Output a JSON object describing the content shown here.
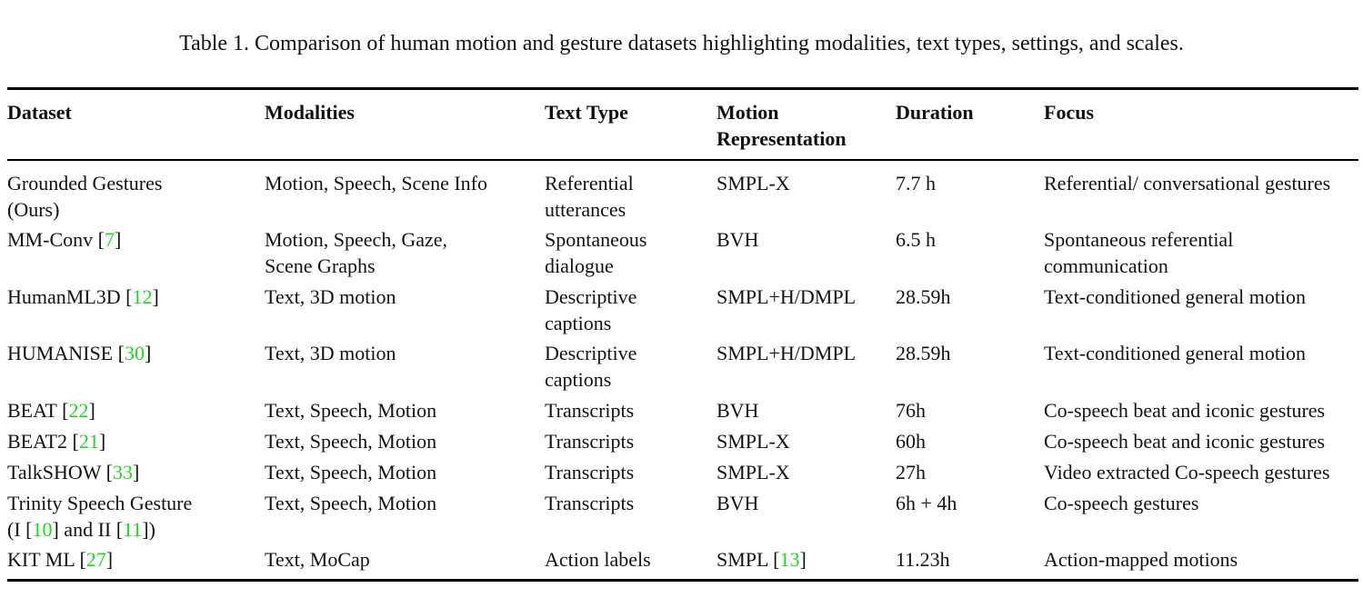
{
  "caption": "Table 1. Comparison of human motion and gesture datasets highlighting modalities, text types, settings, and scales.",
  "headers": {
    "dataset": "Dataset",
    "modalities": "Modalities",
    "text_type": "Text Type",
    "motion_rep_1": "Motion",
    "motion_rep_2": "Representation",
    "duration": "Duration",
    "focus": "Focus"
  },
  "rows": [
    {
      "dataset": [
        "Grounded Gestures",
        "(Ours)"
      ],
      "modalities": [
        "Motion, Speech, Scene Info"
      ],
      "text_type": [
        "Referential",
        "utterances"
      ],
      "motion_rep": "SMPL-X",
      "duration": "7.7 h",
      "focus": [
        "Referential/ conversational gestures"
      ]
    },
    {
      "dataset_name": "MM-Conv [",
      "dataset_ref": "7",
      "dataset_close": "]",
      "modalities": [
        "Motion, Speech, Gaze,",
        "Scene Graphs"
      ],
      "text_type": [
        "Spontaneous",
        "dialogue"
      ],
      "motion_rep": "BVH",
      "duration": "6.5 h",
      "focus": [
        "Spontaneous referential",
        "communication"
      ]
    },
    {
      "dataset_name": "HumanML3D [",
      "dataset_ref": "12",
      "dataset_close": "]",
      "modalities": [
        "Text, 3D motion"
      ],
      "text_type": [
        "Descriptive",
        "captions"
      ],
      "motion_rep": "SMPL+H/DMPL",
      "duration": "28.59h",
      "focus": [
        "Text-conditioned general motion"
      ]
    },
    {
      "dataset_name": "HUMANISE [",
      "dataset_ref": "30",
      "dataset_close": "]",
      "modalities": [
        "Text, 3D motion"
      ],
      "text_type": [
        "Descriptive",
        "captions"
      ],
      "motion_rep": "SMPL+H/DMPL",
      "duration": "28.59h",
      "focus": [
        "Text-conditioned general motion"
      ]
    },
    {
      "dataset_name": "BEAT [",
      "dataset_ref": "22",
      "dataset_close": "]",
      "modalities": [
        "Text, Speech, Motion"
      ],
      "text_type": [
        "Transcripts"
      ],
      "motion_rep": "BVH",
      "duration": "76h",
      "focus": [
        "Co-speech beat and iconic gestures"
      ]
    },
    {
      "dataset_name": "BEAT2 [",
      "dataset_ref": "21",
      "dataset_close": "]",
      "modalities": [
        "Text, Speech, Motion"
      ],
      "text_type": [
        "Transcripts"
      ],
      "motion_rep": "SMPL-X",
      "duration": "60h",
      "focus": [
        "Co-speech beat and iconic gestures"
      ]
    },
    {
      "dataset_name": "TalkSHOW [",
      "dataset_ref": "33",
      "dataset_close": "]",
      "modalities": [
        "Text, Speech, Motion"
      ],
      "text_type": [
        "Transcripts"
      ],
      "motion_rep": "SMPL-X",
      "duration": "27h",
      "focus": [
        "Video extracted Co-speech gestures"
      ]
    },
    {
      "dataset_line1": "Trinity Speech Gesture",
      "dataset_l2_a": "(I [",
      "dataset_ref_a": "10",
      "dataset_l2_b": "] and II [",
      "dataset_ref_b": "11",
      "dataset_l2_c": "])",
      "modalities": [
        "Text, Speech, Motion"
      ],
      "text_type": [
        "Transcripts"
      ],
      "motion_rep": "BVH",
      "duration": "6h + 4h",
      "focus": [
        "Co-speech gestures"
      ]
    },
    {
      "dataset_name": "KIT ML [",
      "dataset_ref": "27",
      "dataset_close": "]",
      "modalities": [
        "Text, MoCap"
      ],
      "text_type": [
        "Action labels"
      ],
      "motion_rep_name": "SMPL [",
      "motion_rep_ref": "13",
      "motion_rep_close": "]",
      "duration": "11.23h",
      "focus": [
        "Action-mapped motions"
      ]
    }
  ],
  "colors": {
    "citation": "#22d622",
    "text": "#111111",
    "rule": "#000000"
  }
}
